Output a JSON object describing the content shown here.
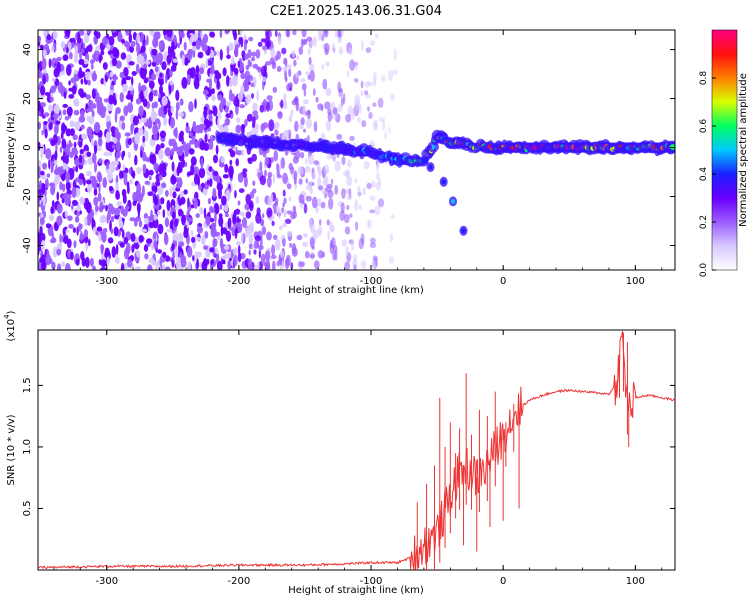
{
  "title": "C2E1.2025.143.06.31.G04",
  "chart_data": [
    {
      "type": "heatmap",
      "title": "C2E1.2025.143.06.31.G04",
      "xlabel": "Height of straight line (km)",
      "ylabel": "Frequency (Hz)",
      "xlim": [
        -352,
        130
      ],
      "ylim": [
        -50,
        48
      ],
      "x_ticks": [
        -300,
        -200,
        -100,
        0,
        100
      ],
      "y_ticks": [
        -40,
        -20,
        0,
        20,
        40
      ],
      "x_tick_labels": [
        "-300",
        "-200",
        "-100",
        "0",
        "100"
      ],
      "y_tick_labels": [
        "-40",
        "-20",
        "0",
        "20",
        "40"
      ],
      "colorbar": {
        "label": "Normalized spectral amplitude",
        "range": [
          0,
          1
        ],
        "ticks": [
          0.0,
          0.2,
          0.4,
          0.6,
          0.8
        ],
        "tick_labels": [
          "0.0",
          "0.2",
          "0.4",
          "0.6",
          "0.8"
        ],
        "colors": [
          "#ffffff",
          "#d8c8ff",
          "#9b5cff",
          "#6a00ff",
          "#1a20ff",
          "#00c8ff",
          "#00ff60",
          "#d8ff00",
          "#ff8000",
          "#ff1010",
          "#ff0080"
        ]
      },
      "features": {
        "noise_region_x": [
          -352,
          -80
        ],
        "noise_dense_until_x": -210,
        "noise_fade_x": [
          -240,
          -80
        ],
        "ridge": [
          {
            "x": -215,
            "y": 4,
            "amp": 0.45
          },
          {
            "x": -190,
            "y": 2,
            "amp": 0.3
          },
          {
            "x": -160,
            "y": 1,
            "amp": 0.35
          },
          {
            "x": -130,
            "y": 0,
            "amp": 0.45
          },
          {
            "x": -100,
            "y": -2,
            "amp": 0.5
          },
          {
            "x": -80,
            "y": -5,
            "amp": 0.6
          },
          {
            "x": -60,
            "y": -6,
            "amp": 0.65
          },
          {
            "x": -50,
            "y": 4,
            "amp": 0.7
          },
          {
            "x": -30,
            "y": 1,
            "amp": 0.8
          },
          {
            "x": -10,
            "y": 0,
            "amp": 0.85
          },
          {
            "x": 0,
            "y": 0,
            "amp": 0.95
          },
          {
            "x": 50,
            "y": 0,
            "amp": 1.0
          },
          {
            "x": 90,
            "y": 0,
            "amp": 0.9
          },
          {
            "x": 130,
            "y": 0,
            "amp": 0.75
          }
        ],
        "branch": [
          {
            "x": -55,
            "y": -8
          },
          {
            "x": -45,
            "y": -14
          },
          {
            "x": -38,
            "y": -22
          },
          {
            "x": -30,
            "y": -34
          }
        ],
        "strong_band_x": [
          0,
          130
        ]
      }
    },
    {
      "type": "line",
      "xlabel": "Height of straight line (km)",
      "ylabel": "SNR (10 * v/v)",
      "y_multiplier_label": "(x10",
      "y_multiplier_exp": "4",
      "xlim": [
        -352,
        130
      ],
      "ylim": [
        0,
        1.95
      ],
      "x_ticks": [
        -300,
        -200,
        -100,
        0,
        100
      ],
      "y_ticks": [
        0.5,
        1.0,
        1.5
      ],
      "x_tick_labels": [
        "-300",
        "-200",
        "-100",
        "0",
        "100"
      ],
      "y_tick_labels": [
        "0.5",
        "1.0",
        "1.5"
      ],
      "series": [
        {
          "color": "#ee3333",
          "x": [
            -352,
            -300,
            -250,
            -200,
            -150,
            -120,
            -100,
            -80,
            -70,
            -60,
            -50,
            -45,
            -40,
            -35,
            -30,
            -25,
            -20,
            -15,
            -10,
            -5,
            0,
            5,
            10,
            20,
            30,
            40,
            50,
            60,
            70,
            80,
            85,
            88,
            90,
            92,
            95,
            100,
            110,
            120,
            130
          ],
          "y": [
            0.02,
            0.03,
            0.03,
            0.04,
            0.04,
            0.05,
            0.06,
            0.06,
            0.1,
            0.2,
            0.3,
            0.45,
            0.6,
            0.75,
            0.85,
            0.8,
            0.75,
            0.8,
            0.9,
            1.0,
            1.1,
            1.2,
            1.3,
            1.38,
            1.42,
            1.45,
            1.46,
            1.45,
            1.44,
            1.43,
            1.5,
            1.7,
            1.9,
            1.6,
            1.3,
            1.4,
            1.42,
            1.4,
            1.38
          ]
        }
      ],
      "spikes": [
        {
          "x": -65,
          "y": 0.55
        },
        {
          "x": -58,
          "y": 0.7
        },
        {
          "x": -52,
          "y": 0.85
        },
        {
          "x": -48,
          "y": 1.4
        },
        {
          "x": -44,
          "y": 1.0
        },
        {
          "x": -40,
          "y": 1.2
        },
        {
          "x": -36,
          "y": 0.95
        },
        {
          "x": -33,
          "y": 1.15
        },
        {
          "x": -28,
          "y": 1.6
        },
        {
          "x": -24,
          "y": 1.1
        },
        {
          "x": -18,
          "y": 1.3
        },
        {
          "x": -12,
          "y": 1.25
        },
        {
          "x": -6,
          "y": 1.45
        },
        {
          "x": 2,
          "y": 1.2
        },
        {
          "x": 8,
          "y": 1.35
        },
        {
          "x": 88,
          "y": 1.75
        },
        {
          "x": 91,
          "y": 1.93
        },
        {
          "x": 94,
          "y": 1.85
        }
      ],
      "dips": [
        {
          "x": -30,
          "y": 0.2
        },
        {
          "x": -20,
          "y": 0.15
        },
        {
          "x": -10,
          "y": 0.35
        },
        {
          "x": 0,
          "y": 0.4
        },
        {
          "x": 12,
          "y": 0.5
        },
        {
          "x": 95,
          "y": 1.0
        }
      ]
    }
  ]
}
